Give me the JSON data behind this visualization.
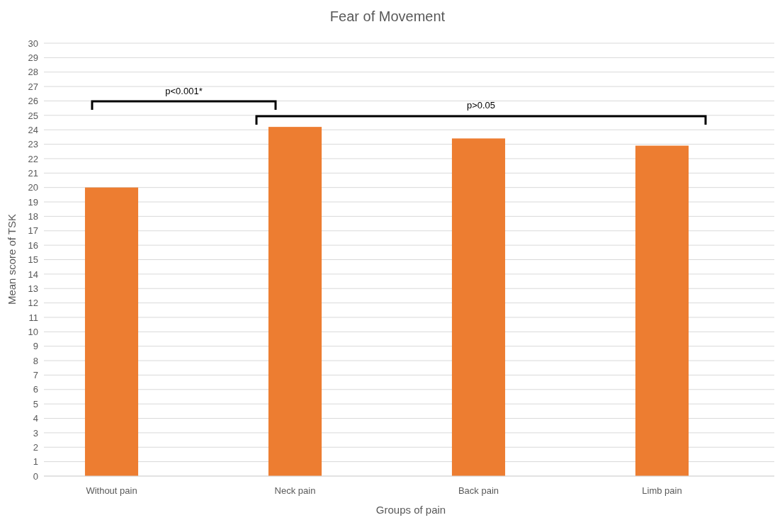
{
  "chart_data": {
    "type": "bar",
    "title": "Fear of Movement",
    "xlabel": "Groups of pain",
    "ylabel": "Mean score of TSK",
    "categories": [
      "Without pain",
      "Neck pain",
      "Back pain",
      "Limb pain"
    ],
    "values": [
      20.0,
      24.2,
      23.4,
      22.9
    ],
    "color": "#ed7d31",
    "ylim": [
      0,
      30
    ],
    "yticks": [
      0,
      1,
      2,
      3,
      4,
      5,
      6,
      7,
      8,
      9,
      10,
      11,
      12,
      13,
      14,
      15,
      16,
      17,
      18,
      19,
      20,
      21,
      22,
      23,
      24,
      25,
      26,
      27,
      28,
      29,
      30
    ],
    "grid": "y",
    "annotations": [
      "p<0.001*",
      "p>0.05"
    ]
  }
}
